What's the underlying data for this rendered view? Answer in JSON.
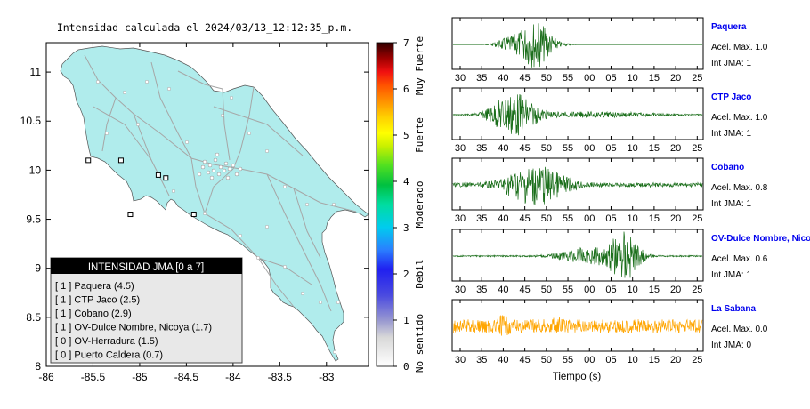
{
  "map": {
    "title": "Intensidad calculada el 2024/03/13_12:12:35_p.m.",
    "x_ticks": [
      "-86",
      "-85.5",
      "-85",
      "-84.5",
      "-84",
      "-83.5",
      "-83"
    ],
    "y_ticks": [
      "11",
      "10.5",
      "10",
      "9.5",
      "9",
      "8.5",
      "8"
    ],
    "land_color": "#b0ecec"
  },
  "colorbar": {
    "ticks": [
      "0",
      "1",
      "2",
      "3",
      "4",
      "5",
      "6",
      "7"
    ],
    "categories": [
      "No sentido",
      "Debil",
      "Moderado",
      "Fuerte",
      "Muy Fuerte"
    ]
  },
  "legend": {
    "title": "INTENSIDAD JMA [0 a 7]",
    "items": [
      "[ 1 ]  Paquera (4.5)",
      "[ 1 ]  CTP Jaco (2.5)",
      "[ 1 ]  Cobano (2.9)",
      "[ 1 ]  OV-Dulce Nombre, Nicoya (1.7)",
      "[ 0 ]  OV-Herradura (1.5)",
      "[ 0 ]  Puerto Caldera (0.7)"
    ]
  },
  "seismograms": {
    "x_ticks": [
      "30",
      "35",
      "40",
      "45",
      "50",
      "55",
      "00",
      "05",
      "10",
      "15",
      "20",
      "25"
    ],
    "xlabel": "Tiempo (s)",
    "traces": [
      {
        "station": "Paquera",
        "accel": "Acel. Max. 1.0",
        "jma": "Int JMA: 1",
        "color": "#1a6e1a"
      },
      {
        "station": "CTP Jaco",
        "accel": "Acel. Max. 1.0",
        "jma": "Int JMA: 1",
        "color": "#1a6e1a"
      },
      {
        "station": "Cobano",
        "accel": "Acel. Max. 0.8",
        "jma": "Int JMA: 1",
        "color": "#1a6e1a"
      },
      {
        "station": "OV-Dulce Nombre, Nicoya",
        "accel": "Acel. Max. 0.6",
        "jma": "Int JMA: 1",
        "color": "#1a6e1a"
      },
      {
        "station": "La Sabana",
        "accel": "Acel. Max. 0.0",
        "jma": "Int JMA: 0",
        "color": "#ffa500"
      }
    ]
  },
  "chart_data": [
    {
      "type": "scatter",
      "title": "Intensidad calculada el 2024/03/13_12:12:35_p.m.",
      "xlabel": "",
      "ylabel": "",
      "xlim": [
        -86,
        -82.55
      ],
      "ylim": [
        8,
        11.3
      ],
      "series": [
        {
          "values": [
            {
              "x": -85.2,
              "y": 10.1,
              "jma": 1
            },
            {
              "x": -84.42,
              "y": 9.55,
              "jma": 1
            },
            {
              "x": -85.1,
              "y": 9.55,
              "jma": 1
            },
            {
              "x": -85.55,
              "y": 10.1,
              "jma": 1
            },
            {
              "x": -84.8,
              "y": 9.95,
              "jma": 0
            },
            {
              "x": -84.72,
              "y": 9.92,
              "jma": 0
            }
          ]
        }
      ]
    },
    {
      "type": "line",
      "title": "",
      "xlabel": "Tiempo (s)",
      "ylabel": "",
      "series": [
        {
          "name": "Paquera",
          "values": []
        },
        {
          "name": "CTP Jaco",
          "values": []
        },
        {
          "name": "Cobano",
          "values": []
        },
        {
          "name": "OV-Dulce Nombre, Nicoya",
          "values": []
        },
        {
          "name": "La Sabana",
          "values": []
        }
      ]
    }
  ]
}
